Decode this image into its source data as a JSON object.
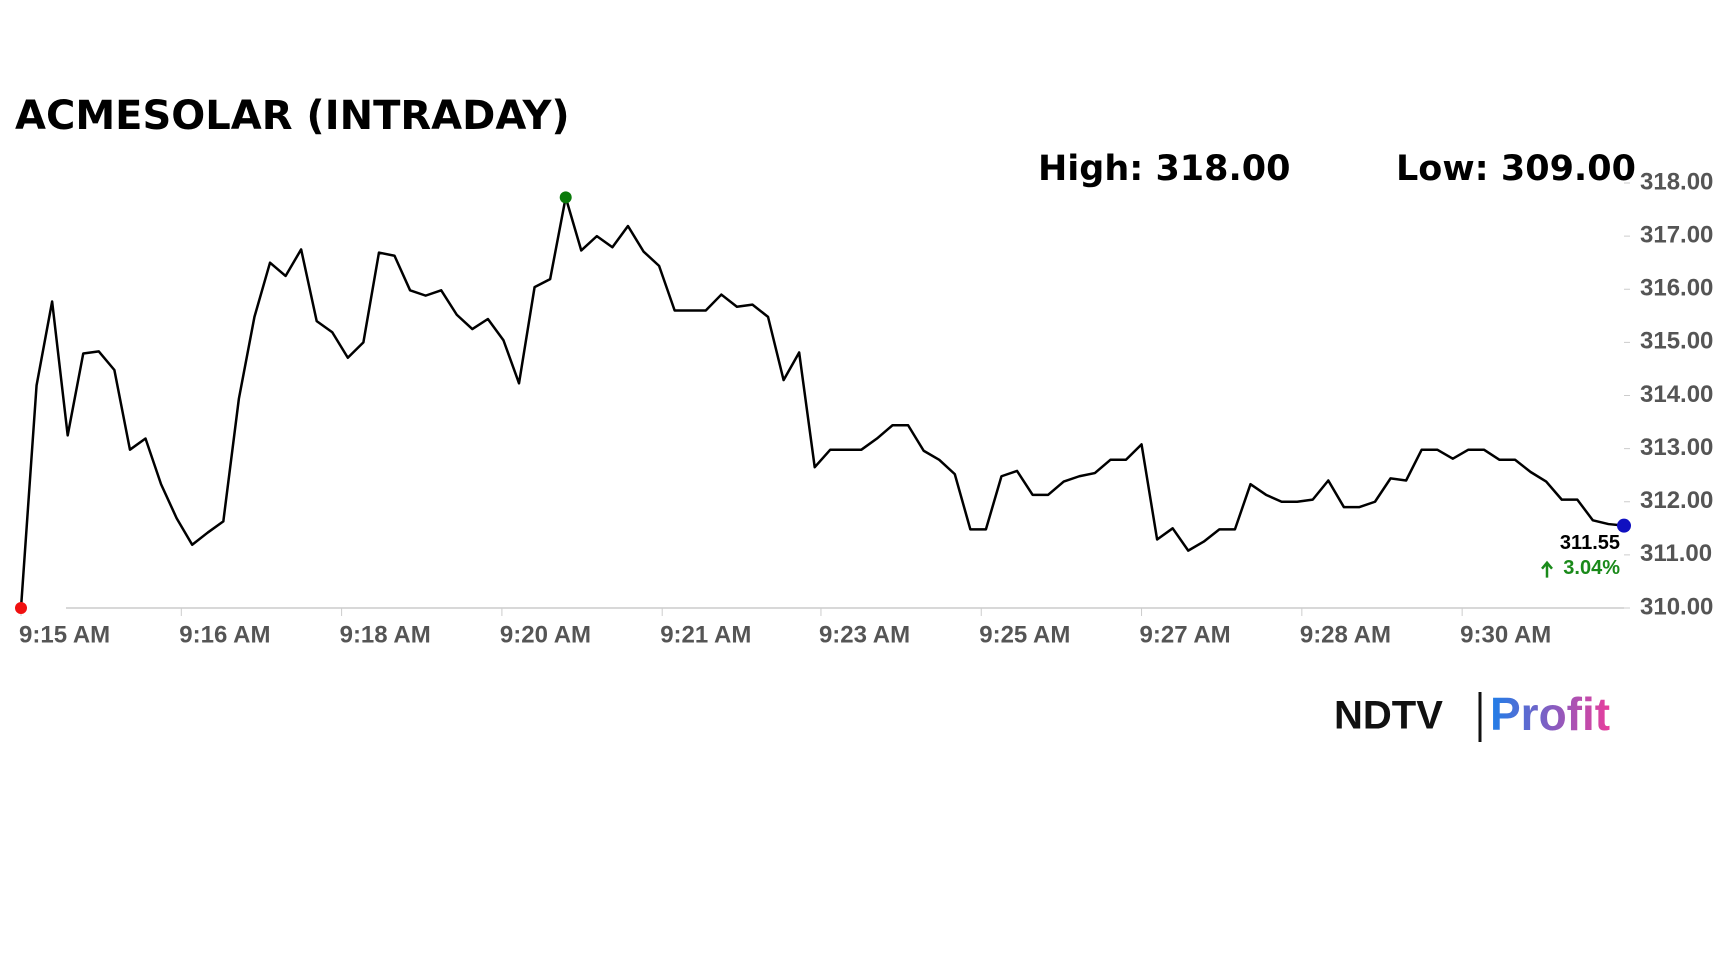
{
  "chart_data": {
    "type": "line",
    "title": "ACMESOLAR (INTRADAY)",
    "high_label": "High: 318.00",
    "low_label": "Low: 309.00",
    "last_label": "311.55",
    "change_label": "3.04%",
    "brand": [
      "NDTV",
      "Profit"
    ],
    "color": "#000000",
    "values": [
      310.0,
      314.19,
      315.77,
      313.25,
      314.79,
      314.83,
      314.48,
      312.98,
      313.19,
      312.33,
      311.69,
      311.19,
      311.42,
      311.63,
      313.94,
      315.48,
      316.5,
      316.25,
      316.75,
      315.4,
      315.19,
      314.71,
      315.0,
      316.69,
      316.63,
      315.98,
      315.88,
      315.98,
      315.52,
      315.25,
      315.44,
      315.04,
      314.23,
      316.04,
      316.19,
      317.73,
      316.73,
      317.0,
      316.79,
      317.19,
      316.71,
      316.44,
      315.6,
      315.6,
      315.6,
      315.9,
      315.67,
      315.71,
      315.48,
      314.29,
      314.81,
      312.65,
      312.98,
      312.98,
      312.98,
      313.19,
      313.44,
      313.44,
      312.96,
      312.79,
      312.52,
      311.48,
      311.48,
      312.48,
      312.58,
      312.13,
      312.13,
      312.38,
      312.48,
      312.54,
      312.79,
      312.79,
      313.08,
      311.29,
      311.5,
      311.08,
      311.25,
      311.48,
      311.48,
      312.33,
      312.13,
      312.0,
      312.0,
      312.04,
      312.4,
      311.9,
      311.9,
      312.0,
      312.44,
      312.4,
      312.98,
      312.98,
      312.81,
      312.98,
      312.98,
      312.79,
      312.79,
      312.56,
      312.38,
      312.04,
      312.04,
      311.65,
      311.58,
      311.55
    ],
    "xticks": [
      {
        "value": 0,
        "label": "9:15 AM"
      },
      {
        "value": 10.3,
        "label": "9:16 AM"
      },
      {
        "value": 20.6,
        "label": "9:18 AM"
      },
      {
        "value": 30.9,
        "label": "9:20 AM"
      },
      {
        "value": 41.2,
        "label": "9:21 AM"
      },
      {
        "value": 51.4,
        "label": "9:23 AM"
      },
      {
        "value": 61.7,
        "label": "9:25 AM"
      },
      {
        "value": 72,
        "label": "9:27 AM"
      },
      {
        "value": 82.3,
        "label": "9:28 AM"
      },
      {
        "value": 92.6,
        "label": "9:30 AM"
      }
    ],
    "ylim": [
      310,
      318
    ],
    "yticks": [
      {
        "value": 310,
        "label": "310.00"
      },
      {
        "value": 311,
        "label": "311.00"
      },
      {
        "value": 312,
        "label": "312.00"
      },
      {
        "value": 313,
        "label": "313.00"
      },
      {
        "value": 314,
        "label": "314.00"
      },
      {
        "value": 315,
        "label": "315.00"
      },
      {
        "value": 316,
        "label": "316.00"
      },
      {
        "value": 317,
        "label": "317.00"
      },
      {
        "value": 318,
        "label": "318.00"
      }
    ]
  }
}
